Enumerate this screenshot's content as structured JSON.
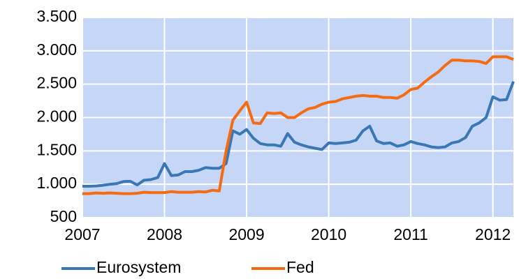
{
  "chart_data": {
    "type": "line",
    "x": [
      2007,
      2007.083,
      2007.167,
      2007.25,
      2007.333,
      2007.417,
      2007.5,
      2007.583,
      2007.667,
      2007.75,
      2007.833,
      2007.917,
      2008,
      2008.083,
      2008.167,
      2008.25,
      2008.333,
      2008.417,
      2008.5,
      2008.583,
      2008.667,
      2008.75,
      2008.833,
      2008.917,
      2009,
      2009.083,
      2009.167,
      2009.25,
      2009.333,
      2009.417,
      2009.5,
      2009.583,
      2009.667,
      2009.75,
      2009.833,
      2009.917,
      2010,
      2010.083,
      2010.167,
      2010.25,
      2010.333,
      2010.417,
      2010.5,
      2010.583,
      2010.667,
      2010.75,
      2010.833,
      2010.917,
      2011,
      2011.083,
      2011.167,
      2011.25,
      2011.333,
      2011.417,
      2011.5,
      2011.583,
      2011.667,
      2011.75,
      2011.833,
      2011.917,
      2012,
      2012.083,
      2012.167,
      2012.25
    ],
    "series": [
      {
        "name": "Eurosystem",
        "color": "#3a78b5",
        "values": [
          970,
          970,
          975,
          985,
          1000,
          1010,
          1040,
          1045,
          990,
          1060,
          1070,
          1100,
          1310,
          1130,
          1140,
          1190,
          1190,
          1210,
          1250,
          1240,
          1240,
          1310,
          1800,
          1750,
          1820,
          1690,
          1610,
          1590,
          1590,
          1570,
          1760,
          1630,
          1590,
          1560,
          1540,
          1520,
          1620,
          1610,
          1620,
          1630,
          1660,
          1800,
          1870,
          1650,
          1610,
          1620,
          1570,
          1590,
          1640,
          1610,
          1590,
          1560,
          1550,
          1560,
          1620,
          1640,
          1700,
          1870,
          1920,
          2000,
          2310,
          2260,
          2270,
          2540
        ]
      },
      {
        "name": "Fed",
        "color": "#f56b12",
        "values": [
          860,
          860,
          870,
          865,
          870,
          865,
          860,
          860,
          865,
          880,
          875,
          875,
          875,
          890,
          880,
          880,
          880,
          890,
          885,
          910,
          900,
          1500,
          1960,
          2100,
          2230,
          1920,
          1910,
          2070,
          2060,
          2070,
          2000,
          2000,
          2070,
          2130,
          2150,
          2200,
          2230,
          2240,
          2280,
          2300,
          2320,
          2330,
          2320,
          2320,
          2300,
          2300,
          2290,
          2340,
          2420,
          2440,
          2530,
          2610,
          2680,
          2780,
          2860,
          2860,
          2850,
          2850,
          2840,
          2810,
          2910,
          2910,
          2910,
          2870
        ]
      }
    ],
    "xlim": [
      2007,
      2012.25
    ],
    "xticks": [
      2007,
      2008,
      2009,
      2010,
      2011,
      2012
    ],
    "ylim": [
      500,
      3500
    ],
    "yticks": [
      {
        "value": 500,
        "label": "500"
      },
      {
        "value": 1000,
        "label": "1.000"
      },
      {
        "value": 1500,
        "label": "1.500"
      },
      {
        "value": 2000,
        "label": "2.000"
      },
      {
        "value": 2500,
        "label": "2.500"
      },
      {
        "value": 3000,
        "label": "3.000"
      },
      {
        "value": 3500,
        "label": "3.500"
      }
    ],
    "grid": true,
    "legend": "bottom"
  }
}
